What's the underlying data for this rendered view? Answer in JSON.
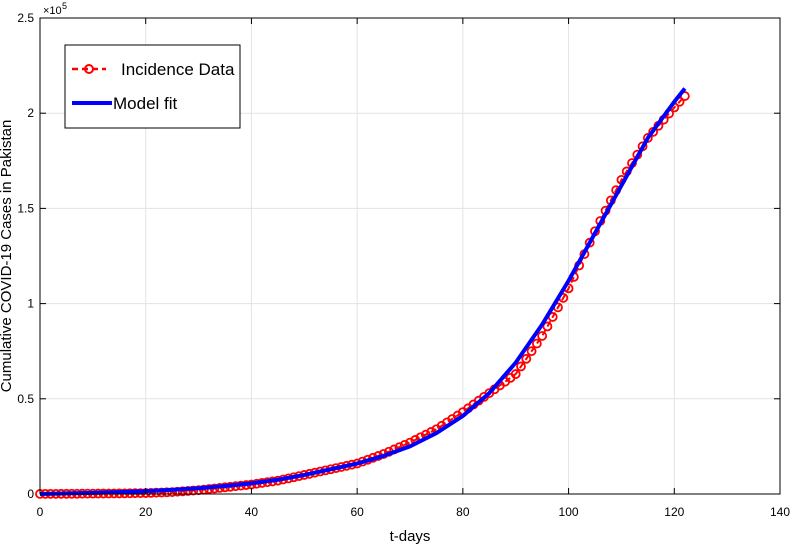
{
  "chart_data": {
    "type": "line",
    "xlabel": "t-days",
    "ylabel": "Cumulative COVID-19 Cases  in Pakistan",
    "xlim": [
      0,
      140
    ],
    "ylim": [
      0,
      2.5
    ],
    "x_ticks": [
      "0",
      "20",
      "40",
      "60",
      "80",
      "100",
      "120",
      "140"
    ],
    "y_ticks": [
      "0",
      "0.5",
      "1",
      "1.5",
      "2",
      "2.5"
    ],
    "y_exponent": {
      "base": "×10",
      "power": "5"
    },
    "grid": true,
    "legend_position": "top-left",
    "series": [
      {
        "name": "Incidence Data",
        "style": "dashed-circle-markers",
        "color": "#ff0000",
        "x": [
          0,
          5,
          10,
          15,
          20,
          25,
          30,
          35,
          40,
          45,
          50,
          55,
          60,
          65,
          70,
          75,
          80,
          85,
          90,
          95,
          100,
          105,
          110,
          115,
          120,
          122
        ],
        "y": [
          0.0005,
          0.001,
          0.002,
          0.003,
          0.005,
          0.01,
          0.02,
          0.035,
          0.05,
          0.07,
          0.1,
          0.13,
          0.16,
          0.21,
          0.27,
          0.34,
          0.43,
          0.53,
          0.63,
          0.83,
          1.08,
          1.38,
          1.65,
          1.87,
          2.03,
          2.09
        ]
      },
      {
        "name": "Model fit",
        "style": "solid",
        "color": "#0000ff",
        "x": [
          0,
          5,
          10,
          15,
          20,
          25,
          30,
          35,
          40,
          45,
          50,
          55,
          60,
          65,
          70,
          75,
          80,
          85,
          90,
          95,
          100,
          105,
          110,
          115,
          120,
          122
        ],
        "y": [
          0.0,
          0.003,
          0.006,
          0.01,
          0.015,
          0.022,
          0.03,
          0.042,
          0.056,
          0.075,
          0.1,
          0.13,
          0.16,
          0.2,
          0.25,
          0.32,
          0.41,
          0.53,
          0.69,
          0.89,
          1.12,
          1.37,
          1.62,
          1.87,
          2.06,
          2.13
        ]
      }
    ]
  }
}
